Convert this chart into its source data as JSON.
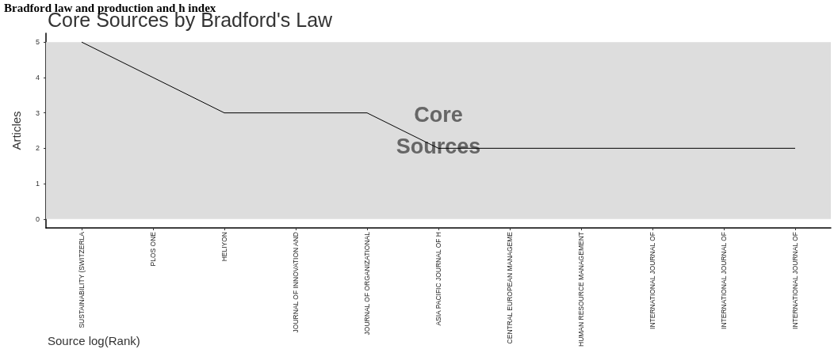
{
  "chart_data": {
    "type": "line",
    "title": "Bradford law and production and h index",
    "subtitle": "Core Sources by Bradford's Law",
    "xlabel": "Source log(Rank)",
    "ylabel": "Articles",
    "categories": [
      "SUSTAINABILITY (SWITZERLA",
      "PLOS ONE",
      "HELIYON",
      "JOURNAL OF INNOVATION AND",
      "JOURNAL OF ORGANIZATIONAL",
      "ASIA PACIFIC JOURNAL OF H",
      "CENTRAL EUROPEAN MANAGEME",
      "HUMAN RESOURCE MANAGEMENT",
      "INTERNATIONAL JOURNAL OF",
      "INTERNATIONAL JOURNAL OF",
      "INTERNATIONAL JOURNAL OF"
    ],
    "series": [
      {
        "color": "#000000",
        "values": [
          5,
          4,
          3,
          3,
          3,
          2,
          2,
          2,
          2,
          2,
          2
        ]
      }
    ],
    "ylim": [
      -0.25,
      5.25
    ],
    "yticks": [
      0,
      1,
      2,
      3,
      4,
      5
    ],
    "bands": [
      {
        "axis": "y",
        "from": 0,
        "to": 5,
        "label": "Core\nSources",
        "color": "#dddddd"
      }
    ],
    "grid": false,
    "marker": "none",
    "line_style": "solid"
  }
}
